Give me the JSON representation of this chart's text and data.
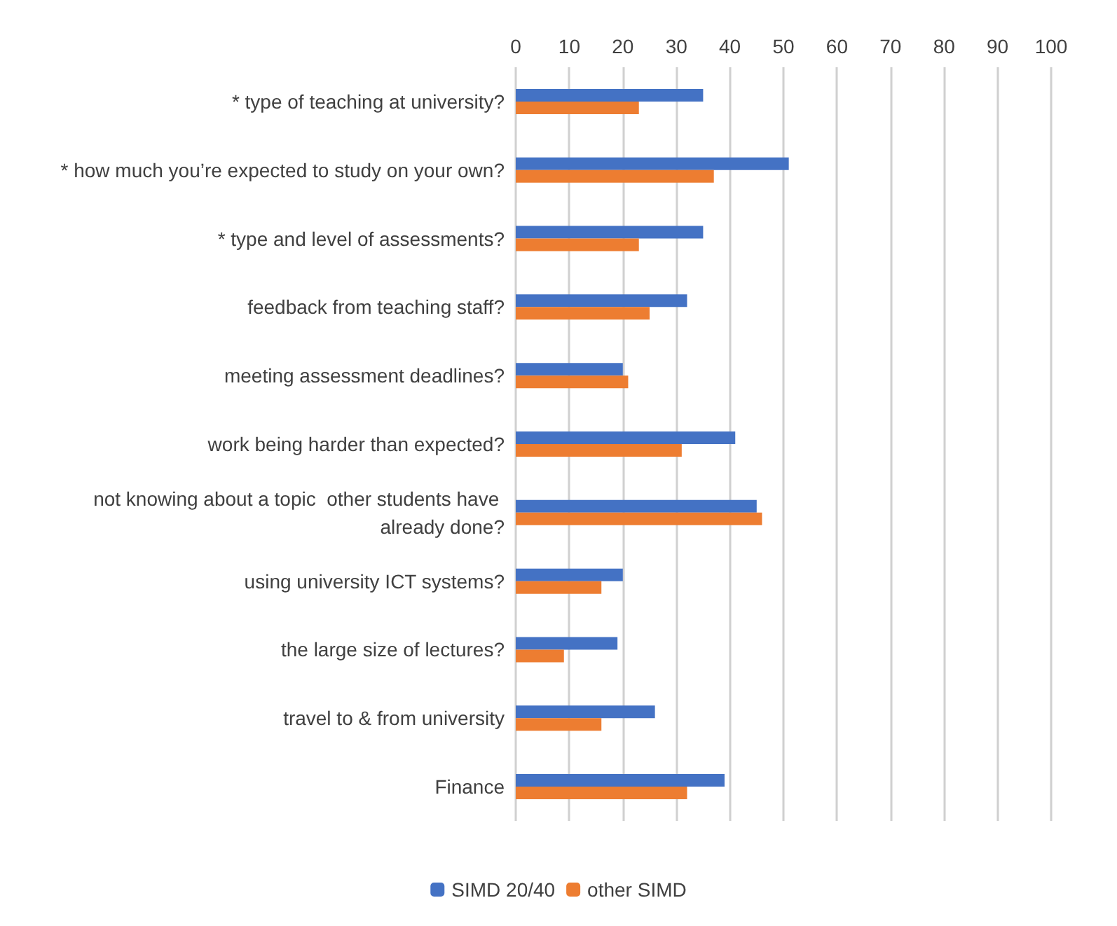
{
  "chart_data": {
    "type": "bar",
    "orientation": "horizontal",
    "categories": [
      "* type of teaching at university?",
      "* how much you’re expected to study on your own?",
      "* type and level of assessments?",
      "feedback from teaching staff?",
      "meeting assessment deadlines?",
      "work being harder than expected?",
      "not knowing about a topic  other students have already done?",
      "using university ICT systems?",
      "the large size of lectures?",
      "travel to & from university",
      "Finance"
    ],
    "series": [
      {
        "name": "SIMD 20/40",
        "color": "#4472c4",
        "values": [
          35,
          51,
          35,
          32,
          20,
          41,
          45,
          20,
          19,
          26,
          39
        ]
      },
      {
        "name": "other SIMD",
        "color": "#ed7d31",
        "values": [
          23,
          37,
          23,
          25,
          21,
          31,
          46,
          16,
          9,
          16,
          32
        ]
      }
    ],
    "xlim": [
      0,
      100
    ],
    "xticks": [
      0,
      10,
      20,
      30,
      40,
      50,
      60,
      70,
      80,
      90,
      100
    ],
    "grid": "x",
    "legend": "bottom"
  }
}
